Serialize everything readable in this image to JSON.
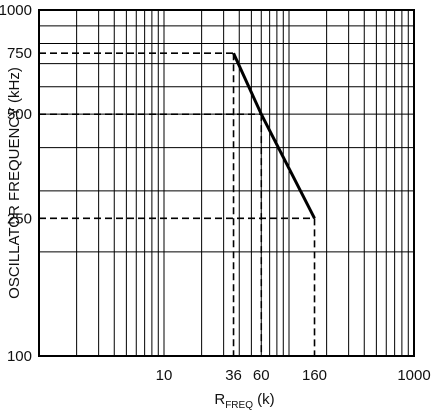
{
  "chart_data": {
    "type": "line",
    "xlabel": {
      "main": "R",
      "sub": "FREQ",
      "unit": " (k)"
    },
    "ylabel": "OSCILLATOR FREQUENCY (kHz)",
    "x_scale": "log",
    "y_scale": "log",
    "xlim": [
      1,
      1000
    ],
    "ylim": [
      100,
      1000
    ],
    "grid": true,
    "x_ticks": [
      {
        "value": 10,
        "label": "10"
      },
      {
        "value": 36,
        "label": "36"
      },
      {
        "value": 60,
        "label": "60"
      },
      {
        "value": 160,
        "label": "160"
      },
      {
        "value": 1000,
        "label": "1000"
      }
    ],
    "y_ticks": [
      {
        "value": 100,
        "label": "100"
      },
      {
        "value": 250,
        "label": "250"
      },
      {
        "value": 500,
        "label": "500"
      },
      {
        "value": 750,
        "label": "750"
      },
      {
        "value": 1000,
        "label": "1000"
      }
    ],
    "series": [
      {
        "x": [
          36,
          60,
          160
        ],
        "y": [
          750,
          500,
          250
        ]
      }
    ],
    "reference_points": [
      {
        "x": 36,
        "y": 750
      },
      {
        "x": 60,
        "y": 500
      },
      {
        "x": 160,
        "y": 250
      }
    ]
  }
}
